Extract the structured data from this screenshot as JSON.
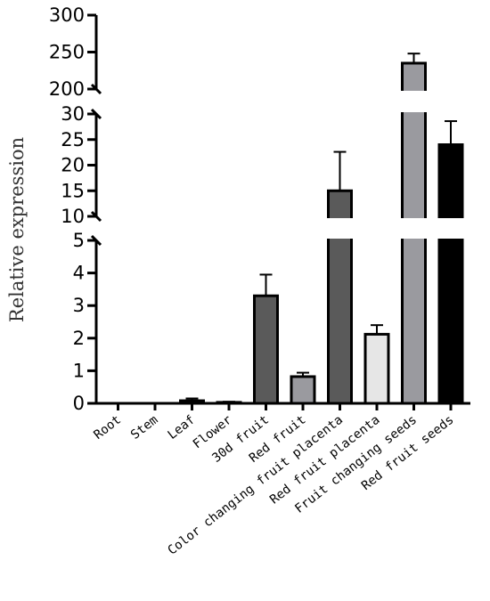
{
  "chart_data": {
    "type": "bar",
    "ylabel": "Relative expression",
    "categories": [
      "Root",
      "Stem",
      "Leaf",
      "Flower",
      "30d fruit",
      "Red fruit",
      "Color changing fruit placenta",
      "Red fruit placenta",
      "Fruit changing seeds",
      "Red fruit seeds"
    ],
    "values": [
      0.0,
      0.0,
      0.08,
      0.03,
      3.3,
      0.82,
      15.0,
      2.12,
      235,
      24.0
    ],
    "error": [
      0.0,
      0.0,
      0.07,
      0.02,
      0.65,
      0.12,
      7.6,
      0.28,
      13,
      4.6
    ],
    "bar_colors": [
      "#ffffff",
      "#ffffff",
      "#5a5a5a",
      "#5a5a5a",
      "#5a5a5a",
      "#9a9a9f",
      "#5a5a5a",
      "#e6e6e6",
      "#9a9a9f",
      "#000000"
    ],
    "y_axis": {
      "broken": true,
      "segments": [
        {
          "range": [
            0,
            5
          ],
          "ticks": [
            "0",
            "1",
            "2",
            "3",
            "4",
            "5"
          ]
        },
        {
          "range": [
            10,
            30
          ],
          "ticks": [
            "10",
            "15",
            "20",
            "25",
            "30"
          ]
        },
        {
          "range": [
            200,
            300
          ],
          "ticks": [
            "200",
            "250",
            "300"
          ]
        }
      ]
    },
    "grid": false,
    "legend": "none"
  }
}
